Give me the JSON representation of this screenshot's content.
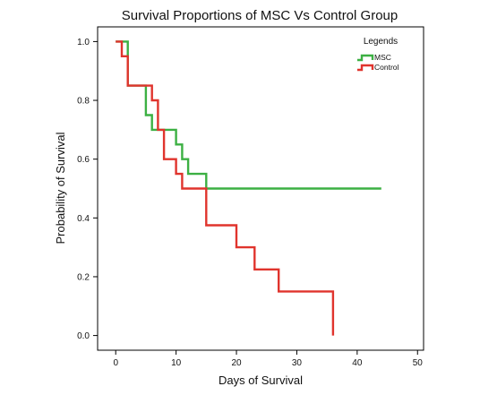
{
  "chart_data": {
    "type": "line",
    "step": true,
    "title": "Survival Proportions of MSC Vs Control Group",
    "xlabel": "Days of Survival",
    "ylabel": "Probability of Survival",
    "xlim": [
      -3,
      51
    ],
    "ylim": [
      -0.05,
      1.05
    ],
    "xticks": [
      0,
      10,
      20,
      30,
      40,
      50
    ],
    "yticks": [
      0.0,
      0.2,
      0.4,
      0.6,
      0.8,
      1.0
    ],
    "xtick_labels": [
      "0",
      "10",
      "20",
      "30",
      "40",
      "50"
    ],
    "ytick_labels": [
      "0.0",
      "0.2",
      "0.4",
      "0.6",
      "0.8",
      "1.0"
    ],
    "grid": false,
    "legend": {
      "title": "Legends",
      "position": "top-right"
    },
    "series": [
      {
        "name": "MSC",
        "color": "#3cb043",
        "x": [
          0,
          2,
          5,
          6,
          10,
          11,
          12,
          15,
          44
        ],
        "y": [
          1.0,
          0.85,
          0.75,
          0.7,
          0.65,
          0.6,
          0.55,
          0.5,
          0.5
        ]
      },
      {
        "name": "Control",
        "color": "#e0342d",
        "x": [
          0,
          1,
          2,
          6,
          7,
          8,
          10,
          11,
          15,
          20,
          23,
          27,
          36,
          36
        ],
        "y": [
          1.0,
          0.95,
          0.85,
          0.8,
          0.7,
          0.6,
          0.55,
          0.5,
          0.375,
          0.3,
          0.225,
          0.15,
          0.15,
          0.0
        ]
      }
    ]
  }
}
